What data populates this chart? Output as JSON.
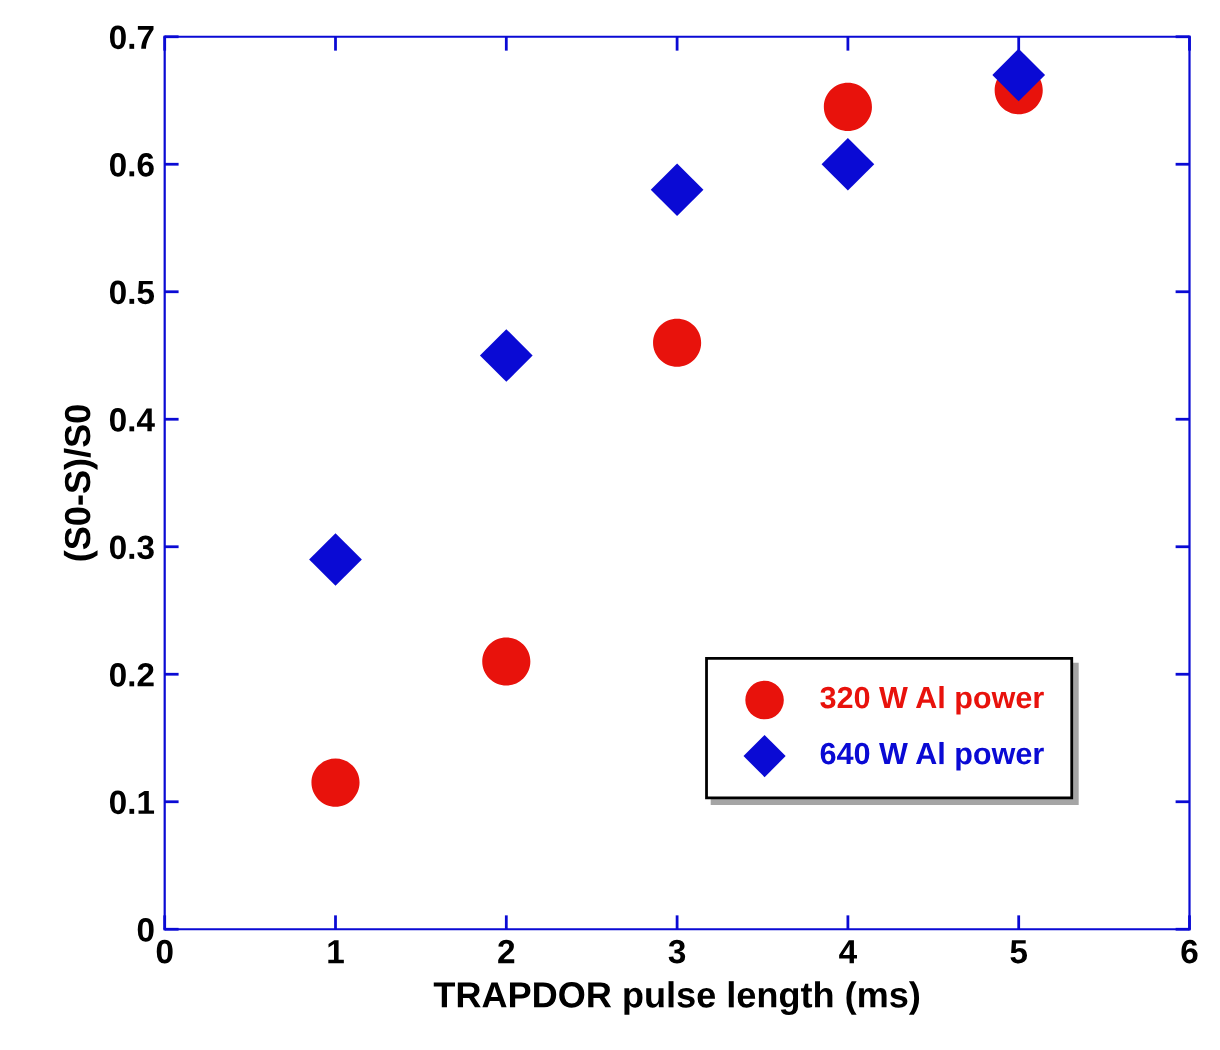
{
  "chart_data": {
    "type": "scatter",
    "xlabel": "TRAPDOR pulse length (ms)",
    "ylabel": "(S0-S)/S0",
    "x": [
      1,
      2,
      3,
      4,
      5
    ],
    "series": [
      {
        "name": "320 W Al power",
        "color": "#e8120c",
        "marker": "circle",
        "values": [
          0.115,
          0.21,
          0.46,
          0.645,
          0.658
        ]
      },
      {
        "name": "640 W Al power",
        "color": "#0a0ad4",
        "marker": "diamond",
        "values": [
          0.29,
          0.45,
          0.58,
          0.6,
          0.67
        ]
      }
    ],
    "xlim": [
      0,
      6
    ],
    "xticks": [
      0,
      1,
      2,
      3,
      4,
      5,
      6
    ],
    "ylim": [
      0,
      0.7
    ],
    "yticks": [
      0,
      0.1,
      0.2,
      0.3,
      0.4,
      0.5,
      0.6,
      0.7
    ],
    "grid": false,
    "legend": "lower right"
  }
}
